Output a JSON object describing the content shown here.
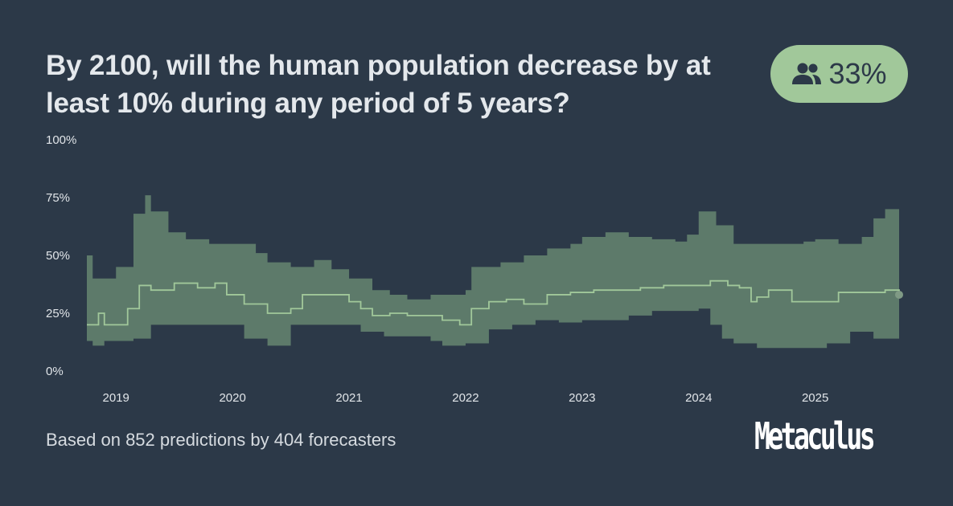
{
  "title": "By 2100, will the human population decrease by at least 10% during any period of 5 years?",
  "badge": {
    "icon": "users-icon",
    "value": "33%"
  },
  "footer": "Based on 852 predictions by 404 forecasters",
  "logo": "Metaculus",
  "colors": {
    "background": "#2c3948",
    "band": "#5d7a6a",
    "median": "#a1c89a",
    "badge": "#a1c89a"
  },
  "chart_data": {
    "type": "area",
    "title": "",
    "xlabel": "",
    "ylabel": "",
    "ylim": [
      0,
      100
    ],
    "xlim": [
      2018.75,
      2025.72
    ],
    "y_ticks": [
      "0%",
      "25%",
      "50%",
      "75%",
      "100%"
    ],
    "y_tick_values": [
      0,
      25,
      50,
      75,
      100
    ],
    "x_ticks": [
      "2019",
      "2020",
      "2021",
      "2022",
      "2023",
      "2024",
      "2025"
    ],
    "x_tick_values": [
      2019,
      2020,
      2021,
      2022,
      2023,
      2024,
      2025
    ],
    "grid": false,
    "legend": "none",
    "series": [
      {
        "name": "median",
        "x": [
          2018.75,
          2018.85,
          2018.9,
          2019.0,
          2019.1,
          2019.2,
          2019.3,
          2019.5,
          2019.7,
          2019.85,
          2019.95,
          2020.1,
          2020.3,
          2020.5,
          2020.6,
          2020.8,
          2021.0,
          2021.1,
          2021.2,
          2021.35,
          2021.5,
          2021.7,
          2021.8,
          2021.95,
          2022.05,
          2022.2,
          2022.35,
          2022.5,
          2022.7,
          2022.9,
          2023.1,
          2023.3,
          2023.5,
          2023.7,
          2023.9,
          2024.1,
          2024.25,
          2024.35,
          2024.45,
          2024.5,
          2024.6,
          2024.8,
          2025.0,
          2025.2,
          2025.4,
          2025.6,
          2025.72
        ],
        "values": [
          20,
          25,
          20,
          20,
          27,
          37,
          35,
          38,
          36,
          38,
          33,
          29,
          25,
          27,
          33,
          33,
          30,
          27,
          24,
          25,
          24,
          24,
          22,
          20,
          27,
          30,
          31,
          29,
          33,
          34,
          35,
          35,
          36,
          37,
          37,
          39,
          37,
          36,
          30,
          32,
          35,
          30,
          30,
          34,
          34,
          35,
          33
        ]
      },
      {
        "name": "upper",
        "x": [
          2018.75,
          2018.8,
          2018.9,
          2019.0,
          2019.15,
          2019.25,
          2019.3,
          2019.45,
          2019.6,
          2019.8,
          2020.0,
          2020.2,
          2020.3,
          2020.5,
          2020.7,
          2020.85,
          2021.0,
          2021.2,
          2021.35,
          2021.5,
          2021.7,
          2022.0,
          2022.05,
          2022.3,
          2022.5,
          2022.7,
          2022.9,
          2023.0,
          2023.2,
          2023.4,
          2023.6,
          2023.8,
          2023.9,
          2024.0,
          2024.15,
          2024.3,
          2024.5,
          2024.7,
          2024.9,
          2025.0,
          2025.2,
          2025.4,
          2025.5,
          2025.6,
          2025.72
        ],
        "values": [
          50,
          40,
          40,
          45,
          68,
          76,
          69,
          60,
          57,
          55,
          55,
          51,
          47,
          45,
          48,
          44,
          40,
          35,
          33,
          31,
          33,
          35,
          45,
          47,
          50,
          53,
          55,
          58,
          60,
          58,
          57,
          56,
          59,
          69,
          63,
          55,
          55,
          55,
          56,
          57,
          55,
          58,
          66,
          70,
          66
        ]
      },
      {
        "name": "lower",
        "x": [
          2018.75,
          2018.8,
          2018.9,
          2019.0,
          2019.15,
          2019.3,
          2019.5,
          2019.7,
          2019.9,
          2020.1,
          2020.3,
          2020.5,
          2020.7,
          2020.9,
          2021.1,
          2021.3,
          2021.5,
          2021.7,
          2021.8,
          2022.0,
          2022.2,
          2022.4,
          2022.6,
          2022.8,
          2023.0,
          2023.2,
          2023.4,
          2023.6,
          2023.8,
          2024.0,
          2024.1,
          2024.2,
          2024.3,
          2024.5,
          2024.7,
          2024.9,
          2025.1,
          2025.3,
          2025.5,
          2025.72
        ],
        "values": [
          13,
          11,
          13,
          13,
          14,
          20,
          20,
          20,
          20,
          14,
          11,
          20,
          20,
          20,
          17,
          15,
          15,
          13,
          11,
          12,
          18,
          20,
          22,
          21,
          22,
          22,
          24,
          26,
          26,
          27,
          20,
          14,
          12,
          10,
          10,
          10,
          12,
          17,
          14,
          12
        ]
      }
    ],
    "last_point": {
      "x": 2025.72,
      "y": 33
    }
  }
}
